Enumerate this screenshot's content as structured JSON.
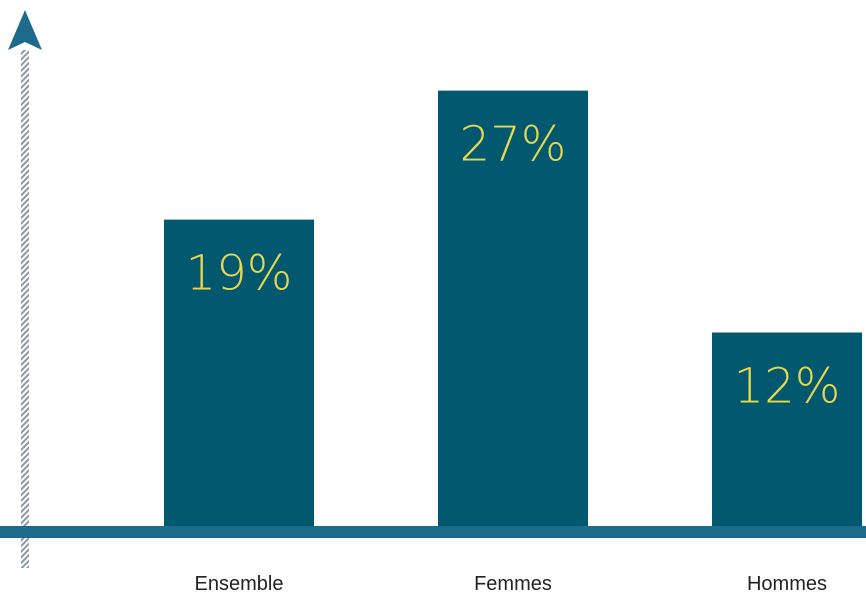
{
  "chart_data": {
    "type": "bar",
    "categories": [
      "Ensemble",
      "Femmes",
      "Hommes"
    ],
    "values": [
      19,
      27,
      12
    ],
    "value_labels": [
      "19%",
      "27%",
      "12%"
    ],
    "title": "",
    "xlabel": "",
    "ylabel": "",
    "ylim": [
      0,
      32
    ],
    "grid": false,
    "legend": "none"
  },
  "colors": {
    "bar": "#02586e",
    "value_label": "#e6d84f",
    "axis": "#1d6b8a",
    "axis_stripe": "#9aa4ad",
    "text": "#222222"
  }
}
